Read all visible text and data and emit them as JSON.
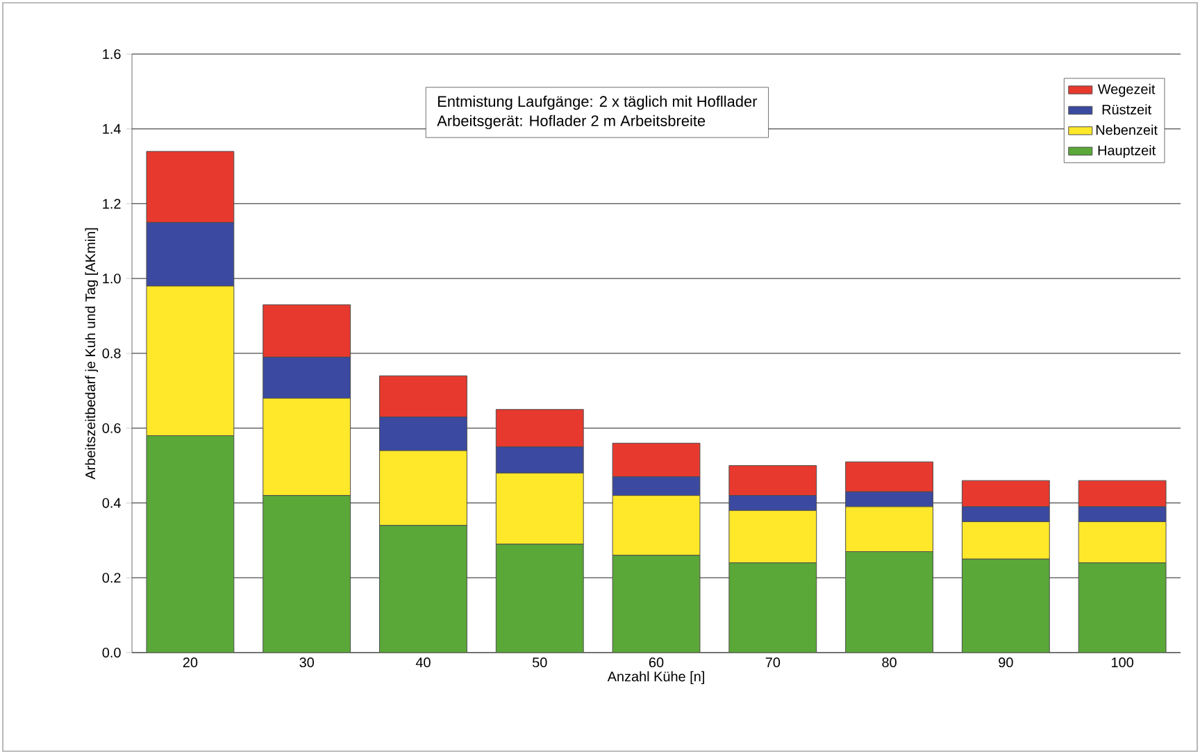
{
  "chart_data": {
    "type": "bar",
    "stacked": true,
    "xlabel": "Anzahl Kühe [n]",
    "ylabel": "Arbeitszeitbedarf je Kuh und Tag [AKmin]",
    "categories": [
      "20",
      "30",
      "40",
      "50",
      "60",
      "70",
      "80",
      "90",
      "100"
    ],
    "series": [
      {
        "name": "Hauptzeit",
        "color": "#5aa838",
        "values": [
          0.58,
          0.42,
          0.34,
          0.29,
          0.26,
          0.24,
          0.27,
          0.25,
          0.24
        ]
      },
      {
        "name": "Nebenzeit",
        "color": "#ffe82a",
        "values": [
          0.4,
          0.26,
          0.2,
          0.19,
          0.16,
          0.14,
          0.12,
          0.1,
          0.11
        ]
      },
      {
        "name": "Rüstzeit",
        "color": "#3b4aa0",
        "values": [
          0.17,
          0.11,
          0.09,
          0.07,
          0.05,
          0.04,
          0.04,
          0.04,
          0.04
        ]
      },
      {
        "name": "Wegezeit",
        "color": "#e8392f",
        "values": [
          0.19,
          0.14,
          0.11,
          0.1,
          0.09,
          0.08,
          0.08,
          0.07,
          0.07
        ]
      }
    ],
    "ylim": [
      0,
      1.6
    ],
    "yticks": [
      {
        "value": 0,
        "label": "0.0"
      },
      {
        "value": 0.2,
        "label": "0.2"
      },
      {
        "value": 0.4,
        "label": "0.4"
      },
      {
        "value": 0.6,
        "label": "0.6"
      },
      {
        "value": 0.8,
        "label": "0.8"
      },
      {
        "value": 1.0,
        "label": "1.0"
      },
      {
        "value": 1.2,
        "label": "1.2"
      },
      {
        "value": 1.4,
        "label": "1.4"
      },
      {
        "value": 1.6,
        "label": "1.6"
      }
    ],
    "grid": "y",
    "legend": "top right",
    "annotations": [
      "Entmistung Laufgänge: 2 x täglich mit Hofllader",
      "Arbeitsgerät: Hoflader 2 m Arbeitsbreite"
    ]
  }
}
